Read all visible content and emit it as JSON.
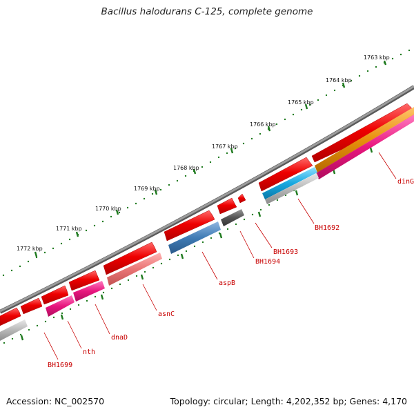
{
  "title": "Bacillus halodurans C-125, complete genome",
  "footer": {
    "accession": "Accession: NC_002570",
    "summary": "Topology: circular; Length: 4,202,352 bp; Genes: 4,170"
  },
  "colors": {
    "backbone": "#8a8a8a",
    "tick_dots": "#1f7a1f",
    "label_red": "#c80000",
    "cds_red": "#e00000",
    "gene_pink": "#e8167e",
    "gene_orange": "#e8900c",
    "gene_cyan": "#18a8e0",
    "gene_steelblue": "#3f7bb5",
    "gene_salmon": "#ea7575",
    "gene_gray": "#b8b8b8",
    "gene_darkgray": "#555555"
  },
  "ruler": [
    {
      "label": "1763 kbp",
      "kbp": 1763
    },
    {
      "label": "1764 kbp",
      "kbp": 1764
    },
    {
      "label": "1765 kbp",
      "kbp": 1765
    },
    {
      "label": "1766 kbp",
      "kbp": 1766
    },
    {
      "label": "1767 kbp",
      "kbp": 1767
    },
    {
      "label": "1768 kbp",
      "kbp": 1768
    },
    {
      "label": "1769 kbp",
      "kbp": 1769
    },
    {
      "label": "1770 kbp",
      "kbp": 1770
    },
    {
      "label": "1771 kbp",
      "kbp": 1771
    },
    {
      "label": "1772 kbp",
      "kbp": 1772
    }
  ],
  "gene_labels": [
    {
      "text": "dinG"
    },
    {
      "text": "BH1692"
    },
    {
      "text": "BH1693"
    },
    {
      "text": "BH1694"
    },
    {
      "text": "aspB"
    },
    {
      "text": "asnC"
    },
    {
      "text": "dnaD"
    },
    {
      "text": "nth"
    },
    {
      "text": "BH1699"
    }
  ]
}
